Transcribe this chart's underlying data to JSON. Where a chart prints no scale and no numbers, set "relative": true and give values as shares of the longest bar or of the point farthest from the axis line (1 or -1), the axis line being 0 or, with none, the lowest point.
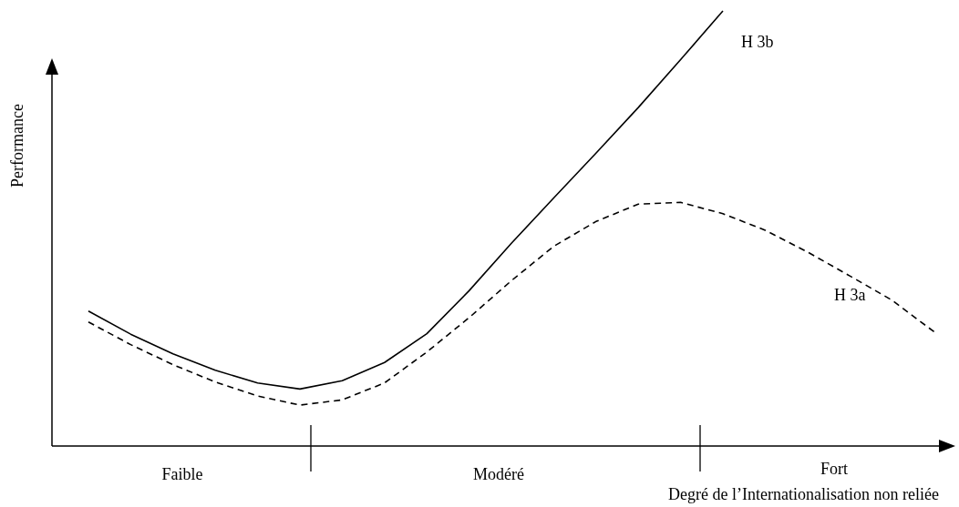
{
  "chart_data": {
    "type": "line",
    "relative": true,
    "ylabel": "Performance",
    "xlabel": "Degré de l’Internationalisation non reliée",
    "annotations": [
      "Faible",
      "Modéré",
      "Fort"
    ],
    "categories": [
      null,
      null,
      null,
      null,
      null,
      null,
      null,
      null,
      null,
      null,
      null,
      null,
      null,
      null,
      null,
      null,
      null,
      null,
      null,
      null,
      null
    ],
    "series": [
      {
        "name": "H 3b",
        "color": "#000000",
        "line_style": "solid",
        "values": [
          0.31,
          0.257,
          0.212,
          0.174,
          0.145,
          0.131,
          0.15,
          0.192,
          0.258,
          0.357,
          0.466,
          0.57,
          0.673,
          0.778,
          0.888,
          1,
          null,
          null,
          null,
          null,
          null
        ]
      },
      {
        "name": "H 3a",
        "color": "#000000",
        "line_style": "dashed",
        "values": [
          0.285,
          0.233,
          0.187,
          0.147,
          0.115,
          0.094,
          0.106,
          0.145,
          0.216,
          0.295,
          0.38,
          0.459,
          0.516,
          0.556,
          0.56,
          0.534,
          0.496,
          0.446,
          0.391,
          0.335,
          0.262
        ]
      }
    ]
  }
}
